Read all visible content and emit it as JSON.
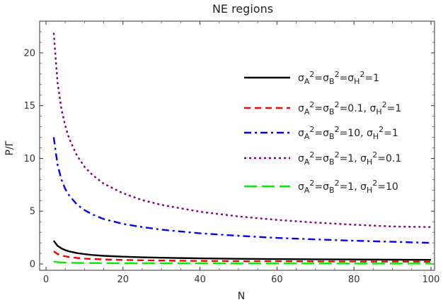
{
  "chart_data": {
    "type": "line",
    "title": "NE regions",
    "xlabel": "N",
    "ylabel": "P/Γ",
    "xlim": [
      0,
      100
    ],
    "ylim": [
      -0.5,
      22.8
    ],
    "x_ticks": [
      0,
      20,
      40,
      60,
      80,
      100
    ],
    "y_ticks": [
      0,
      5,
      10,
      15,
      20
    ],
    "legend_position": "right",
    "grid": false,
    "series": [
      {
        "name": "σA2=σB2=σH2=1",
        "legend_parts": [
          [
            "σ",
            ""
          ],
          [
            "A",
            "sub"
          ],
          [
            "2",
            "sup"
          ],
          [
            "=σ",
            ""
          ],
          [
            "B",
            "sub"
          ],
          [
            "2",
            "sup"
          ],
          [
            "=σ",
            ""
          ],
          [
            "H",
            "sub"
          ],
          [
            "2",
            "sup"
          ],
          [
            "=1",
            ""
          ]
        ],
        "color": "#000000",
        "dash": "solid",
        "x": [
          2,
          3,
          4,
          5,
          6,
          8,
          10,
          12,
          15,
          20,
          25,
          30,
          40,
          50,
          60,
          70,
          80,
          90,
          100
        ],
        "y": [
          2.2,
          1.72,
          1.47,
          1.31,
          1.19,
          1.03,
          0.93,
          0.85,
          0.77,
          0.69,
          0.63,
          0.59,
          0.53,
          0.49,
          0.46,
          0.44,
          0.42,
          0.4,
          0.39
        ]
      },
      {
        "name": "σA2=σB2=0.1, σH2=1",
        "legend_parts": [
          [
            "σ",
            ""
          ],
          [
            "A",
            "sub"
          ],
          [
            "2",
            "sup"
          ],
          [
            "=σ",
            ""
          ],
          [
            "B",
            "sub"
          ],
          [
            "2",
            "sup"
          ],
          [
            "=0.1, σ",
            ""
          ],
          [
            "H",
            "sub"
          ],
          [
            "2",
            "sup"
          ],
          [
            "=1",
            ""
          ]
        ],
        "color": "#ff0000",
        "dash": "dashed",
        "x": [
          2,
          3,
          4,
          5,
          6,
          8,
          10,
          12,
          15,
          20,
          25,
          30,
          40,
          50,
          60,
          70,
          80,
          90,
          100
        ],
        "y": [
          1.2,
          0.94,
          0.81,
          0.72,
          0.66,
          0.57,
          0.51,
          0.47,
          0.43,
          0.38,
          0.35,
          0.32,
          0.29,
          0.27,
          0.26,
          0.24,
          0.23,
          0.22,
          0.21
        ]
      },
      {
        "name": "σA2=σB2=10, σH2=1",
        "legend_parts": [
          [
            "σ",
            ""
          ],
          [
            "A",
            "sub"
          ],
          [
            "2",
            "sup"
          ],
          [
            "=σ",
            ""
          ],
          [
            "B",
            "sub"
          ],
          [
            "2",
            "sup"
          ],
          [
            "=10, σ",
            ""
          ],
          [
            "H",
            "sub"
          ],
          [
            "2",
            "sup"
          ],
          [
            "=1",
            ""
          ]
        ],
        "color": "#0000ff",
        "dash": "dashdot",
        "x": [
          2,
          3,
          4,
          5,
          6,
          8,
          10,
          12,
          15,
          20,
          25,
          30,
          40,
          50,
          60,
          70,
          80,
          90,
          100
        ],
        "y": [
          12.0,
          9.4,
          8.0,
          7.1,
          6.5,
          5.65,
          5.1,
          4.7,
          4.25,
          3.8,
          3.5,
          3.25,
          2.9,
          2.67,
          2.47,
          2.33,
          2.2,
          2.1,
          2.0
        ]
      },
      {
        "name": "σA2=σB2=1, σH2=0.1",
        "legend_parts": [
          [
            "σ",
            ""
          ],
          [
            "A",
            "sub"
          ],
          [
            "2",
            "sup"
          ],
          [
            "=σ",
            ""
          ],
          [
            "B",
            "sub"
          ],
          [
            "2",
            "sup"
          ],
          [
            "=1, σ",
            ""
          ],
          [
            "H",
            "sub"
          ],
          [
            "2",
            "sup"
          ],
          [
            "=0.1",
            ""
          ]
        ],
        "color": "#800080",
        "dash": "dotted",
        "x": [
          2,
          3,
          4,
          5,
          6,
          8,
          10,
          12,
          15,
          20,
          25,
          30,
          40,
          50,
          60,
          70,
          80,
          90,
          100
        ],
        "y": [
          21.9,
          17.2,
          14.7,
          13.1,
          11.9,
          10.3,
          9.2,
          8.45,
          7.6,
          6.7,
          6.05,
          5.6,
          4.95,
          4.5,
          4.17,
          3.92,
          3.72,
          3.55,
          3.5
        ]
      },
      {
        "name": "σA2=σB2=1, σH2=10",
        "legend_parts": [
          [
            "σ",
            ""
          ],
          [
            "A",
            "sub"
          ],
          [
            "2",
            "sup"
          ],
          [
            "=σ",
            ""
          ],
          [
            "B",
            "sub"
          ],
          [
            "2",
            "sup"
          ],
          [
            "=1, σ",
            ""
          ],
          [
            "H",
            "sub"
          ],
          [
            "2",
            "sup"
          ],
          [
            "=10",
            ""
          ]
        ],
        "color": "#00ee00",
        "dash": "longdash",
        "x": [
          2,
          3,
          4,
          5,
          6,
          8,
          10,
          12,
          15,
          20,
          25,
          30,
          40,
          50,
          60,
          70,
          80,
          90,
          100
        ],
        "y": [
          0.22,
          0.17,
          0.15,
          0.13,
          0.12,
          0.1,
          0.09,
          0.085,
          0.077,
          0.069,
          0.063,
          0.059,
          0.053,
          0.049,
          0.046,
          0.044,
          0.042,
          0.04,
          0.039
        ]
      }
    ]
  }
}
